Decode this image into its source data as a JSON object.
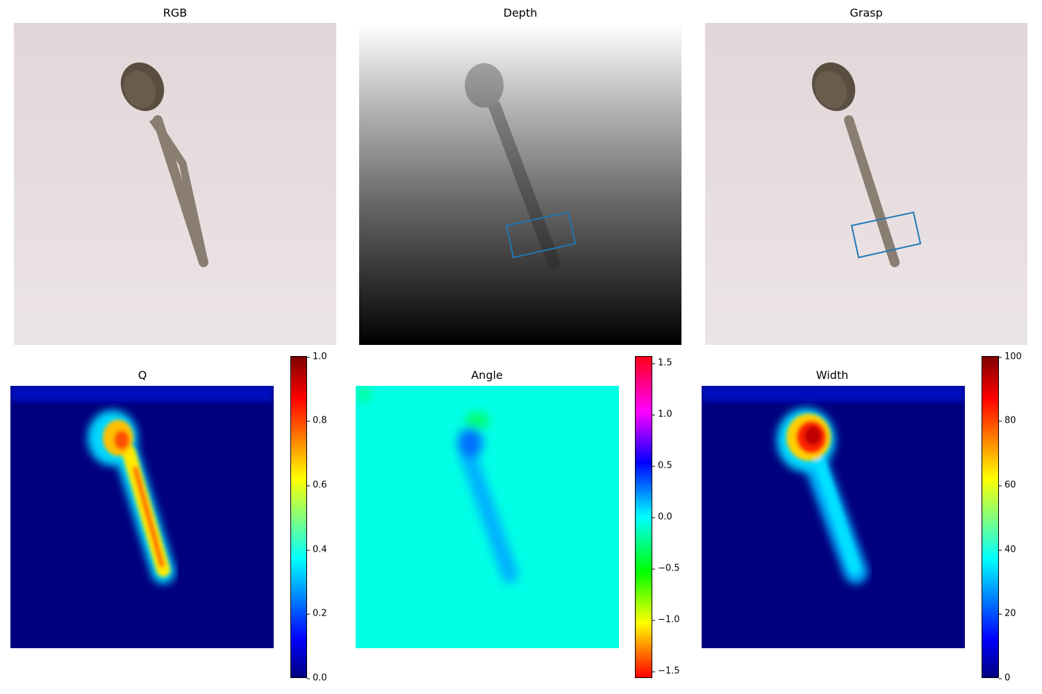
{
  "panels": {
    "rgb": {
      "title": "RGB"
    },
    "depth": {
      "title": "Depth"
    },
    "grasp": {
      "title": "Grasp"
    },
    "q": {
      "title": "Q"
    },
    "angle": {
      "title": "Angle"
    },
    "width": {
      "title": "Width"
    }
  },
  "colorbars": {
    "q": {
      "ticks": [
        "1.0",
        "0.8",
        "0.6",
        "0.4",
        "0.2",
        "0.0"
      ],
      "min": 0,
      "max": 1,
      "colormap": "jet"
    },
    "angle": {
      "ticks": [
        "1.5",
        "1.0",
        "0.5",
        "0.0",
        "−0.5",
        "−1.0",
        "−1.5"
      ],
      "min": -1.5708,
      "max": 1.5708,
      "colormap": "hsv"
    },
    "width": {
      "ticks": [
        "100",
        "80",
        "60",
        "40",
        "20",
        "0"
      ],
      "min": 0,
      "max": 100,
      "colormap": "jet"
    }
  },
  "colors": {
    "grasp_rect": "#1f77b4",
    "jet_low": "#00007f",
    "angle_bg": "#00ffe5"
  }
}
